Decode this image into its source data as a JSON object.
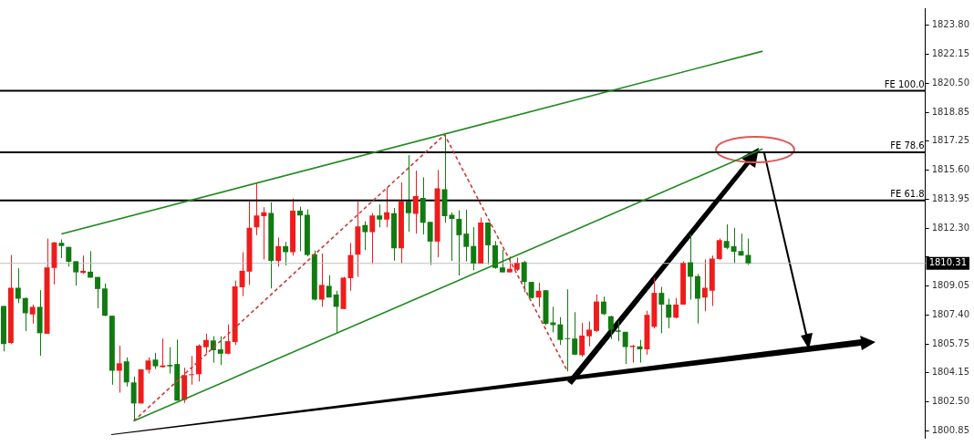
{
  "chart_data": {
    "type": "candlestick",
    "categories": [
      null,
      null,
      null,
      null,
      null,
      null,
      null,
      null,
      null,
      null,
      null,
      null,
      null,
      null,
      null,
      null,
      null,
      null,
      null,
      null,
      null,
      null,
      null,
      null,
      null,
      null,
      null,
      null,
      null,
      null,
      null,
      null,
      null,
      null,
      null,
      null,
      null,
      null,
      null,
      null,
      null,
      null,
      null,
      null,
      null,
      null,
      null,
      null,
      null,
      null,
      null,
      null,
      null,
      null,
      null,
      null,
      null,
      null,
      null,
      null,
      null,
      null,
      null,
      null,
      null,
      null,
      null,
      null,
      null,
      null,
      null,
      null,
      null,
      null,
      null,
      null,
      null,
      null,
      null,
      null,
      null,
      null,
      null,
      null,
      null,
      null,
      null,
      null,
      null,
      null,
      null,
      null,
      null,
      null,
      null,
      null,
      null,
      null,
      null,
      null,
      null,
      null,
      null,
      null,
      null,
      null,
      null,
      null,
      null,
      null,
      null,
      null,
      null,
      null,
      null,
      null,
      null,
      null,
      null,
      null,
      null,
      null,
      null,
      null,
      null,
      null,
      null,
      null
    ],
    "ohlc": [
      [
        1807.9,
        1807.9,
        1805.33,
        1805.75
      ],
      [
        1805.81,
        1810.78,
        1805.75,
        1808.93
      ],
      [
        1808.93,
        1810.03,
        1808.06,
        1808.31
      ],
      [
        1808.35,
        1808.38,
        1806.48,
        1807.49
      ],
      [
        1807.42,
        1807.97,
        1806.91,
        1807.85
      ],
      [
        1807.85,
        1808.79,
        1805.09,
        1806.36
      ],
      [
        1806.33,
        1811.71,
        1806.33,
        1810.08
      ],
      [
        1810.05,
        1811.52,
        1809.12,
        1811.49
      ],
      [
        1811.47,
        1811.66,
        1810.61,
        1811.29
      ],
      [
        1811.24,
        1811.24,
        1810.13,
        1810.4
      ],
      [
        1810.43,
        1810.43,
        1809.06,
        1809.8
      ],
      [
        1809.77,
        1810.75,
        1809.72,
        1809.89
      ],
      [
        1809.84,
        1811.0,
        1809.5,
        1809.5
      ],
      [
        1809.54,
        1809.54,
        1807.77,
        1808.86
      ],
      [
        1808.89,
        1809.17,
        1807.32,
        1807.35
      ],
      [
        1807.35,
        1807.35,
        1803.45,
        1804.24
      ],
      [
        1804.24,
        1805.66,
        1803.0,
        1804.66
      ],
      [
        1804.77,
        1804.99,
        1803.35,
        1803.58
      ],
      [
        1803.58,
        1803.91,
        1801.4,
        1802.39
      ],
      [
        1802.39,
        1804.32,
        1802.39,
        1804.32
      ],
      [
        1804.29,
        1804.99,
        1804.08,
        1804.82
      ],
      [
        1804.87,
        1805.25,
        1804.34,
        1804.49
      ],
      [
        1804.44,
        1806.06,
        1804.41,
        1804.54
      ],
      [
        1804.57,
        1805.57,
        1804.08,
        1804.49
      ],
      [
        1804.62,
        1806.0,
        1802.55,
        1802.55
      ],
      [
        1802.59,
        1804.41,
        1802.42,
        1803.99
      ],
      [
        1803.99,
        1805.07,
        1803.45,
        1804.04
      ],
      [
        1804.04,
        1805.73,
        1803.63,
        1805.66
      ],
      [
        1805.57,
        1806.33,
        1805.23,
        1805.98
      ],
      [
        1805.95,
        1806.19,
        1804.7,
        1805.4
      ],
      [
        1805.45,
        1806.19,
        1804.57,
        1805.2
      ],
      [
        1805.2,
        1806.86,
        1805.17,
        1805.91
      ],
      [
        1805.86,
        1809.34,
        1805.7,
        1809.01
      ],
      [
        1808.96,
        1810.94,
        1808.46,
        1809.89
      ],
      [
        1809.84,
        1813.81,
        1809.09,
        1812.32
      ],
      [
        1812.35,
        1814.88,
        1811.9,
        1813.01
      ],
      [
        1812.98,
        1813.48,
        1810.53,
        1813.2
      ],
      [
        1813.16,
        1813.76,
        1808.89,
        1810.45
      ],
      [
        1810.45,
        1811.77,
        1810.13,
        1811.28
      ],
      [
        1811.28,
        1811.52,
        1810.2,
        1810.94
      ],
      [
        1810.94,
        1813.97,
        1810.75,
        1813.28
      ],
      [
        1813.28,
        1813.51,
        1811.0,
        1813.01
      ],
      [
        1813.06,
        1813.36,
        1810.7,
        1810.78
      ],
      [
        1810.83,
        1811.03,
        1808.21,
        1808.26
      ],
      [
        1808.26,
        1810.86,
        1807.85,
        1809.09
      ],
      [
        1809.04,
        1809.64,
        1808.38,
        1808.38
      ],
      [
        1808.55,
        1808.76,
        1806.36,
        1807.85
      ],
      [
        1807.73,
        1809.55,
        1807.72,
        1809.5
      ],
      [
        1809.47,
        1811.46,
        1808.76,
        1810.78
      ],
      [
        1810.8,
        1813.81,
        1809.55,
        1812.4
      ],
      [
        1812.48,
        1812.68,
        1811.06,
        1812.07
      ],
      [
        1812.07,
        1813.15,
        1810.28,
        1813.01
      ],
      [
        1813.01,
        1813.64,
        1812.35,
        1812.78
      ],
      [
        1812.78,
        1814.59,
        1812.35,
        1813.2
      ],
      [
        1813.15,
        1813.44,
        1810.46,
        1811.16
      ],
      [
        1811.16,
        1814.88,
        1810.3,
        1813.81
      ],
      [
        1813.81,
        1816.42,
        1812.1,
        1813.15
      ],
      [
        1813.11,
        1815.55,
        1811.99,
        1814.11
      ],
      [
        1814.01,
        1815.17,
        1811.95,
        1812.6
      ],
      [
        1812.65,
        1812.65,
        1810.22,
        1811.54
      ],
      [
        1811.54,
        1815.58,
        1810.66,
        1814.55
      ],
      [
        1814.5,
        1817.58,
        1812.6,
        1812.98
      ],
      [
        1813.06,
        1813.18,
        1810.45,
        1812.82
      ],
      [
        1812.82,
        1813.31,
        1809.62,
        1811.9
      ],
      [
        1811.99,
        1813.34,
        1810.42,
        1811.24
      ],
      [
        1811.29,
        1812.35,
        1809.92,
        1810.3
      ],
      [
        1810.3,
        1812.9,
        1810.3,
        1812.62
      ],
      [
        1812.62,
        1812.62,
        1810.25,
        1811.33
      ],
      [
        1811.33,
        1811.57,
        1810.0,
        1810.05
      ],
      [
        1810.08,
        1811.08,
        1809.8,
        1809.8
      ],
      [
        1809.8,
        1810.7,
        1809.8,
        1810.0
      ],
      [
        1809.95,
        1810.63,
        1809.87,
        1810.33
      ],
      [
        1810.38,
        1810.46,
        1808.68,
        1809.26
      ],
      [
        1809.26,
        1809.26,
        1808.31,
        1808.35
      ],
      [
        1808.38,
        1809.21,
        1807.85,
        1808.76
      ],
      [
        1808.79,
        1808.79,
        1806.82,
        1806.89
      ],
      [
        1806.97,
        1807.85,
        1806.41,
        1806.82
      ],
      [
        1806.86,
        1807.27,
        1805.7,
        1805.98
      ],
      [
        1806.06,
        1808.84,
        1804.21,
        1806.03
      ],
      [
        1806.06,
        1807.55,
        1805.12,
        1805.15
      ],
      [
        1805.12,
        1806.94,
        1805.04,
        1806.23
      ],
      [
        1806.19,
        1807.02,
        1805.62,
        1806.56
      ],
      [
        1806.49,
        1808.55,
        1806.44,
        1808.15
      ],
      [
        1808.15,
        1808.43,
        1807.39,
        1807.44
      ],
      [
        1807.32,
        1807.35,
        1806.03,
        1806.56
      ],
      [
        1806.52,
        1807.06,
        1805.91,
        1806.44
      ],
      [
        1806.44,
        1806.44,
        1804.62,
        1805.58
      ],
      [
        1805.58,
        1805.7,
        1804.7,
        1805.65
      ],
      [
        1805.62,
        1805.98,
        1804.7,
        1805.45
      ],
      [
        1805.45,
        1807.63,
        1805.15,
        1807.4
      ],
      [
        1806.72,
        1809.5,
        1806.64,
        1808.64
      ],
      [
        1808.64,
        1808.98,
        1806.36,
        1807.98
      ],
      [
        1807.98,
        1808.31,
        1806.64,
        1807.24
      ],
      [
        1807.24,
        1808.35,
        1807.19,
        1807.98
      ],
      [
        1807.98,
        1810.42,
        1807.98,
        1810.33
      ],
      [
        1810.37,
        1811.95,
        1808.26,
        1809.55
      ],
      [
        1809.59,
        1809.7,
        1806.91,
        1808.31
      ],
      [
        1808.38,
        1810.53,
        1807.6,
        1808.93
      ],
      [
        1808.76,
        1810.75,
        1807.9,
        1810.58
      ],
      [
        1810.55,
        1811.71,
        1810.5,
        1811.62
      ],
      [
        1811.57,
        1812.52,
        1811.11,
        1811.19
      ],
      [
        1811.28,
        1812.32,
        1810.3,
        1810.96
      ],
      [
        1811.0,
        1811.99,
        1810.75,
        1810.75
      ],
      [
        1810.78,
        1811.71,
        1810.22,
        1810.31
      ],
      null,
      null,
      null,
      null,
      null,
      null,
      null,
      null,
      null,
      null,
      null,
      null,
      null,
      null,
      null,
      null,
      null,
      null,
      null,
      null,
      null,
      null,
      null,
      null
    ],
    "colors": [
      "#117a11",
      "#ef1c1c",
      "#117a11",
      "#117a11",
      "#ef1c1c",
      "#117a11",
      "#ef1c1c",
      "#ef1c1c",
      "#117a11",
      "#117a11",
      "#117a11",
      "#ef1c1c",
      "#117a11",
      "#117a11",
      "#117a11",
      "#117a11",
      "#ef1c1c",
      "#117a11",
      "#117a11",
      "#ef1c1c",
      "#ef1c1c",
      "#117a11",
      "#ef1c1c",
      "#117a11",
      "#117a11",
      "#ef1c1c",
      "#ef1c1c",
      "#ef1c1c",
      "#ef1c1c",
      "#117a11",
      "#117a11",
      "#ef1c1c",
      "#ef1c1c",
      "#ef1c1c",
      "#ef1c1c",
      "#ef1c1c",
      "#ef1c1c",
      "#117a11",
      "#ef1c1c",
      "#117a11",
      "#ef1c1c",
      "#117a11",
      "#117a11",
      "#117a11",
      "#ef1c1c",
      "#117a11",
      "#117a11",
      "#ef1c1c",
      "#ef1c1c",
      "#ef1c1c",
      "#117a11",
      "#ef1c1c",
      "#117a11",
      "#ef1c1c",
      "#117a11",
      "#ef1c1c",
      "#117a11",
      "#ef1c1c",
      "#117a11",
      "#117a11",
      "#ef1c1c",
      "#117a11",
      "#117a11",
      "#117a11",
      "#117a11",
      "#117a11",
      "#ef1c1c",
      "#117a11",
      "#117a11",
      "#117a11",
      "#ef1c1c",
      "#ef1c1c",
      "#117a11",
      "#117a11",
      "#ef1c1c",
      "#117a11",
      "#117a11",
      "#117a11",
      "#117a11",
      "#117a11",
      "#ef1c1c",
      "#ef1c1c",
      "#ef1c1c",
      "#117a11",
      "#117a11",
      "#117a11",
      "#117a11",
      "#ef1c1c",
      "#117a11",
      "#ef1c1c",
      "#ef1c1c",
      "#117a11",
      "#117a11",
      "#ef1c1c",
      "#ef1c1c",
      "#117a11",
      "#117a11",
      "#ef1c1c",
      "#ef1c1c",
      "#ef1c1c",
      "#117a11",
      "#117a11",
      "#117a11",
      "#117a11",
      null,
      null,
      null,
      null,
      null,
      null,
      null,
      null,
      null,
      null,
      null,
      null,
      null,
      null,
      null,
      null,
      null,
      null,
      null,
      null,
      null,
      null,
      null,
      null
    ],
    "series": [
      {
        "type": "line",
        "color": "#1f8a1f",
        "values": [
          null,
          null,
          null,
          null,
          null,
          null,
          null,
          null,
          1811.97,
          null,
          null,
          null,
          null,
          null,
          null,
          null,
          null,
          null,
          null,
          null,
          null,
          null,
          null,
          null,
          null,
          null,
          null,
          null,
          null,
          null,
          null,
          null,
          null,
          null,
          null,
          null,
          null,
          null,
          null,
          null,
          null,
          null,
          null,
          null,
          null,
          null,
          null,
          null,
          null,
          null,
          null,
          null,
          null,
          null,
          null,
          null,
          null,
          null,
          null,
          null,
          null,
          null,
          null,
          null,
          null,
          null,
          null,
          null,
          null,
          null,
          null,
          null,
          null,
          null,
          null,
          null,
          null,
          null,
          null,
          null,
          null,
          null,
          null,
          null,
          null,
          null,
          null,
          null,
          null,
          null,
          null,
          null,
          null,
          null,
          null,
          null,
          null,
          null,
          null,
          null,
          null,
          null,
          null,
          null,
          null,
          1822.3,
          null,
          null,
          null,
          null,
          null,
          null,
          null,
          null,
          null,
          null,
          null,
          null,
          null,
          null,
          null,
          null,
          null,
          null,
          null,
          null,
          null,
          null
        ]
      },
      {
        "type": "line",
        "color": "#1f8a1f",
        "values": [
          null,
          null,
          null,
          null,
          null,
          null,
          null,
          null,
          null,
          null,
          null,
          null,
          null,
          null,
          null,
          null,
          null,
          null,
          1801.4,
          null,
          null,
          null,
          null,
          null,
          null,
          null,
          null,
          null,
          null,
          null,
          null,
          null,
          null,
          null,
          null,
          null,
          null,
          null,
          null,
          null,
          null,
          null,
          null,
          null,
          null,
          null,
          null,
          null,
          null,
          null,
          null,
          null,
          null,
          null,
          null,
          null,
          null,
          null,
          null,
          null,
          null,
          null,
          null,
          null,
          null,
          null,
          null,
          null,
          null,
          null,
          null,
          null,
          null,
          null,
          null,
          null,
          null,
          null,
          null,
          null,
          null,
          null,
          null,
          null,
          null,
          null,
          null,
          null,
          null,
          null,
          null,
          null,
          null,
          null,
          null,
          null,
          null,
          null,
          null,
          null,
          null,
          null,
          null,
          null,
          null,
          1816.78,
          null,
          null,
          null,
          null,
          null,
          null,
          null,
          null,
          null,
          null,
          null,
          null,
          null,
          null,
          null,
          null,
          null,
          null,
          null,
          null,
          null,
          null
        ]
      },
      {
        "type": "line",
        "color": "#c83c3c",
        "line_style": "dashed",
        "values": [
          null,
          null,
          null,
          null,
          null,
          null,
          null,
          null,
          null,
          null,
          null,
          null,
          null,
          null,
          null,
          null,
          null,
          null,
          1801.4,
          null,
          null,
          null,
          null,
          null,
          null,
          null,
          null,
          null,
          null,
          null,
          null,
          null,
          null,
          null,
          null,
          null,
          null,
          null,
          null,
          null,
          null,
          null,
          null,
          null,
          null,
          null,
          null,
          null,
          null,
          null,
          null,
          null,
          null,
          null,
          null,
          null,
          null,
          null,
          null,
          null,
          null,
          1817.58,
          null,
          null,
          null,
          null,
          null,
          null,
          null,
          null,
          null,
          null,
          null,
          null,
          null,
          null,
          null,
          null,
          1804.21,
          null,
          null,
          null,
          null,
          null,
          null,
          null,
          null,
          null,
          null,
          null,
          null,
          null,
          null,
          null,
          null,
          null,
          null,
          null,
          null,
          null,
          null,
          null,
          null,
          null,
          null,
          null,
          null,
          null,
          null,
          null,
          null,
          null,
          null,
          null,
          null,
          null,
          null,
          null,
          null,
          null,
          null,
          null,
          null,
          null,
          null,
          null,
          null,
          null
        ]
      }
    ],
    "ylim": [
      1800.45,
      1824.73
    ],
    "yticks": [
      {
        "value": 1800.85,
        "label": "1800.85"
      },
      {
        "value": 1802.5,
        "label": "1802.50"
      },
      {
        "value": 1804.15,
        "label": "1804.15"
      },
      {
        "value": 1805.75,
        "label": "1805.75"
      },
      {
        "value": 1807.4,
        "label": "1807.40"
      },
      {
        "value": 1809.05,
        "label": "1809.05"
      },
      {
        "value": 1810.7,
        "label": null
      },
      {
        "value": 1812.3,
        "label": "1812.30"
      },
      {
        "value": 1813.95,
        "label": "1813.95"
      },
      {
        "value": 1815.6,
        "label": "1815.60"
      },
      {
        "value": 1817.25,
        "label": "1817.25"
      },
      {
        "value": 1818.85,
        "label": "1818.85"
      },
      {
        "value": 1820.5,
        "label": "1820.50"
      },
      {
        "value": 1822.15,
        "label": "1822.15"
      },
      {
        "value": 1823.8,
        "label": "1823.80"
      }
    ],
    "tick_labels": "y",
    "ref_lines": [
      {
        "axis": "y",
        "value": 1820.06,
        "label": "FE 100.0"
      },
      {
        "axis": "y",
        "value": 1816.59,
        "label": "FE 78.6"
      },
      {
        "axis": "y",
        "value": 1813.87,
        "label": "FE 61.8"
      },
      {
        "axis": "y",
        "value": 1810.31,
        "label": "1810.31",
        "color": "#c0c0c0"
      }
    ]
  }
}
